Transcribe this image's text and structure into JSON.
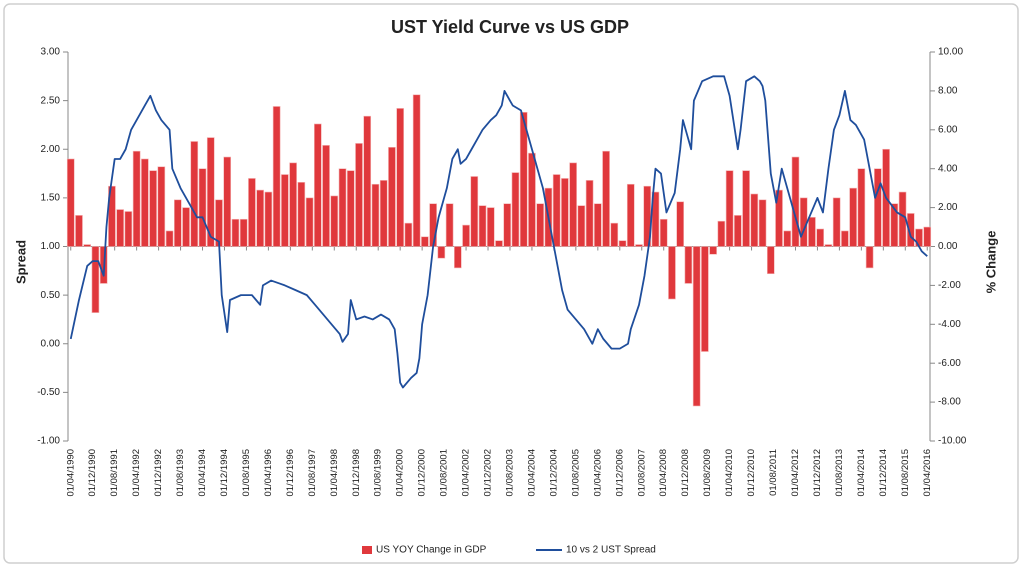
{
  "chart_data": {
    "type": "combo",
    "title": "UST Yield Curve vs US GDP",
    "y_label": "Spread",
    "y2_label": "% Change",
    "legend": "bottom",
    "xlim": [
      "01/03/1990",
      "01/05/2016"
    ],
    "xticks": [
      "01/04/1990",
      "01/12/1990",
      "01/08/1991",
      "01/04/1992",
      "01/12/1992",
      "01/08/1993",
      "01/04/1994",
      "01/12/1994",
      "01/08/1995",
      "01/04/1996",
      "01/12/1996",
      "01/08/1997",
      "01/04/1998",
      "01/12/1998",
      "01/08/1999",
      "01/04/2000",
      "01/12/2000",
      "01/08/2001",
      "01/04/2002",
      "01/12/2002",
      "01/08/2003",
      "01/04/2004",
      "01/12/2004",
      "01/08/2005",
      "01/04/2006",
      "01/12/2006",
      "01/08/2007",
      "01/04/2008",
      "01/12/2008",
      "01/08/2009",
      "01/04/2010",
      "01/12/2010",
      "01/08/2011",
      "01/04/2012",
      "01/12/2012",
      "01/08/2013",
      "01/04/2014",
      "01/12/2014",
      "01/08/2015",
      "01/04/2016"
    ],
    "ylim": [
      -1,
      3
    ],
    "yticks": [
      {
        "value": 3,
        "label": "3.00"
      },
      {
        "value": 2.5,
        "label": "2.50"
      },
      {
        "value": 2,
        "label": "2.00"
      },
      {
        "value": 1.5,
        "label": "1.50"
      },
      {
        "value": 1,
        "label": "1.00"
      },
      {
        "value": 0.5,
        "label": "0.50"
      },
      {
        "value": 0,
        "label": "0.00"
      },
      {
        "value": -0.5,
        "label": "-0.50"
      },
      {
        "value": -1,
        "label": "-1.00"
      }
    ],
    "y2lim": [
      -10,
      10
    ],
    "y2ticks": [
      {
        "value": 10,
        "label": "10.00"
      },
      {
        "value": 8,
        "label": "8.00"
      },
      {
        "value": 6,
        "label": "6.00"
      },
      {
        "value": 4,
        "label": "4.00"
      },
      {
        "value": 2,
        "label": "2.00"
      },
      {
        "value": 0,
        "label": "0.00"
      },
      {
        "value": -2,
        "label": "-2.00"
      },
      {
        "value": -4,
        "label": "-4.00"
      },
      {
        "value": -6,
        "label": "-6.00"
      },
      {
        "value": -8,
        "label": "-8.00"
      },
      {
        "value": -10,
        "label": "-10.00"
      }
    ],
    "series": [
      {
        "name": "US YOY Change in GDP",
        "type": "bar",
        "axis": "y2",
        "color": "#e0383c",
        "x": [
          "01/04/1990",
          "01/07/1990",
          "01/10/1990",
          "01/01/1991",
          "01/04/1991",
          "01/07/1991",
          "01/10/1991",
          "01/01/1992",
          "01/04/1992",
          "01/07/1992",
          "01/10/1992",
          "01/01/1993",
          "01/04/1993",
          "01/07/1993",
          "01/10/1993",
          "01/01/1994",
          "01/04/1994",
          "01/07/1994",
          "01/10/1994",
          "01/01/1995",
          "01/04/1995",
          "01/07/1995",
          "01/10/1995",
          "01/01/1996",
          "01/04/1996",
          "01/07/1996",
          "01/10/1996",
          "01/01/1997",
          "01/04/1997",
          "01/07/1997",
          "01/10/1997",
          "01/01/1998",
          "01/04/1998",
          "01/07/1998",
          "01/10/1998",
          "01/01/1999",
          "01/04/1999",
          "01/07/1999",
          "01/10/1999",
          "01/01/2000",
          "01/04/2000",
          "01/07/2000",
          "01/10/2000",
          "01/01/2001",
          "01/04/2001",
          "01/07/2001",
          "01/10/2001",
          "01/01/2002",
          "01/04/2002",
          "01/07/2002",
          "01/10/2002",
          "01/01/2003",
          "01/04/2003",
          "01/07/2003",
          "01/10/2003",
          "01/01/2004",
          "01/04/2004",
          "01/07/2004",
          "01/10/2004",
          "01/01/2005",
          "01/04/2005",
          "01/07/2005",
          "01/10/2005",
          "01/01/2006",
          "01/04/2006",
          "01/07/2006",
          "01/10/2006",
          "01/01/2007",
          "01/04/2007",
          "01/07/2007",
          "01/10/2007",
          "01/01/2008",
          "01/04/2008",
          "01/07/2008",
          "01/10/2008",
          "01/01/2009",
          "01/04/2009",
          "01/07/2009",
          "01/10/2009",
          "01/01/2010",
          "01/04/2010",
          "01/07/2010",
          "01/10/2010",
          "01/01/2011",
          "01/04/2011",
          "01/07/2011",
          "01/10/2011",
          "01/01/2012",
          "01/04/2012",
          "01/07/2012",
          "01/10/2012",
          "01/01/2013",
          "01/04/2013",
          "01/07/2013",
          "01/10/2013",
          "01/01/2014",
          "01/04/2014",
          "01/07/2014",
          "01/10/2014",
          "01/01/2015",
          "01/04/2015",
          "01/07/2015",
          "01/10/2015",
          "01/01/2016",
          "01/04/2016"
        ],
        "values": [
          4.5,
          1.6,
          0.1,
          -3.4,
          -1.9,
          3.1,
          1.9,
          1.8,
          4.9,
          4.5,
          3.9,
          4.1,
          0.8,
          2.4,
          2.0,
          5.4,
          4.0,
          5.6,
          2.4,
          4.6,
          1.4,
          1.4,
          3.5,
          2.9,
          2.8,
          7.2,
          3.7,
          4.3,
          3.3,
          2.5,
          6.3,
          5.2,
          2.6,
          4.0,
          3.9,
          5.3,
          6.7,
          3.2,
          3.4,
          5.1,
          7.1,
          1.2,
          7.8,
          0.5,
          2.2,
          -0.6,
          2.2,
          -1.1,
          1.1,
          3.6,
          2.1,
          2.0,
          0.3,
          2.2,
          3.8,
          6.9,
          4.8,
          2.2,
          3.0,
          3.7,
          3.5,
          4.3,
          2.1,
          3.4,
          2.2,
          4.9,
          1.2,
          0.3,
          3.2,
          0.1,
          3.1,
          2.8,
          1.4,
          -2.7,
          2.3,
          -1.9,
          -8.2,
          -5.4,
          -0.4,
          1.3,
          3.9,
          1.6,
          3.9,
          2.7,
          2.4,
          -1.4,
          2.9,
          0.8,
          4.6,
          2.5,
          1.5,
          0.9,
          0.1,
          2.5,
          0.8,
          3.0,
          4.0,
          -1.1,
          4.0,
          5.0,
          2.2,
          2.8,
          1.7,
          0.9,
          1.0
        ]
      },
      {
        "name": "10 vs 2 UST Spread",
        "type": "line",
        "color": "#1f4e9c",
        "x": [
          "01/04/1990",
          "01/07/1990",
          "01/10/1990",
          "01/12/1990",
          "01/02/1991",
          "01/04/1991",
          "01/05/1991",
          "01/06/1991",
          "01/08/1991",
          "01/10/1991",
          "01/12/1991",
          "01/02/1992",
          "01/05/1992",
          "01/07/1992",
          "01/09/1992",
          "01/11/1992",
          "01/01/1993",
          "01/04/1993",
          "01/05/1993",
          "01/08/1993",
          "01/11/1993",
          "01/02/1994",
          "01/04/1994",
          "01/07/1994",
          "01/10/1994",
          "01/11/1994",
          "01/01/1995",
          "01/02/1995",
          "01/06/1995",
          "01/10/1995",
          "01/01/1996",
          "01/02/1996",
          "01/05/1996",
          "01/08/1996",
          "01/10/1996",
          "01/02/1997",
          "01/06/1997",
          "01/09/1997",
          "01/12/1997",
          "01/03/1998",
          "01/06/1998",
          "01/07/1998",
          "01/09/1998",
          "01/10/1998",
          "01/12/1998",
          "01/03/1999",
          "01/06/1999",
          "01/09/1999",
          "01/12/1999",
          "01/02/2000",
          "01/03/2000",
          "01/04/2000",
          "01/05/2000",
          "01/08/2000",
          "01/10/2000",
          "01/11/2000",
          "01/12/2000",
          "01/02/2001",
          "01/04/2001",
          "01/06/2001",
          "01/09/2001",
          "01/11/2001",
          "01/01/2002",
          "01/02/2002",
          "01/04/2002",
          "01/06/2002",
          "01/08/2002",
          "01/10/2002",
          "01/01/2003",
          "01/03/2003",
          "01/05/2003",
          "01/06/2003",
          "01/08/2003",
          "01/09/2003",
          "01/12/2003",
          "01/02/2004",
          "01/05/2004",
          "01/08/2004",
          "01/10/2004",
          "01/12/2004",
          "01/03/2005",
          "01/05/2005",
          "01/08/2005",
          "01/11/2005",
          "01/01/2006",
          "01/02/2006",
          "01/04/2006",
          "01/06/2006",
          "01/09/2006",
          "01/12/2006",
          "01/03/2007",
          "01/04/2007",
          "01/07/2007",
          "01/09/2007",
          "01/11/2007",
          "01/12/2007",
          "01/01/2008",
          "01/03/2008",
          "01/05/2008",
          "01/08/2008",
          "01/10/2008",
          "01/11/2008",
          "01/01/2009",
          "01/02/2009",
          "01/03/2009",
          "01/06/2009",
          "01/10/2009",
          "01/02/2010",
          "01/04/2010",
          "01/07/2010",
          "01/08/2010",
          "01/10/2010",
          "01/01/2011",
          "01/03/2011",
          "01/04/2011",
          "01/05/2011",
          "01/07/2011",
          "01/09/2011",
          "01/11/2011",
          "01/02/2012",
          "01/05/2012",
          "01/06/2012",
          "01/09/2012",
          "01/12/2012",
          "01/02/2013",
          "01/04/2013",
          "01/06/2013",
          "01/08/2013",
          "01/10/2013",
          "01/12/2013",
          "01/02/2014",
          "01/05/2014",
          "01/07/2014",
          "01/09/2014",
          "01/11/2014",
          "01/01/2015",
          "01/05/2015",
          "01/08/2015",
          "01/10/2015",
          "01/12/2015",
          "01/02/2016",
          "01/04/2016"
        ],
        "values": [
          0.05,
          0.45,
          0.8,
          0.85,
          0.85,
          0.7,
          1.2,
          1.5,
          1.9,
          1.9,
          2.0,
          2.2,
          2.35,
          2.45,
          2.55,
          2.4,
          2.3,
          2.2,
          1.8,
          1.6,
          1.45,
          1.3,
          1.3,
          1.1,
          1.05,
          0.5,
          0.12,
          0.45,
          0.5,
          0.5,
          0.4,
          0.6,
          0.65,
          0.62,
          0.6,
          0.55,
          0.5,
          0.4,
          0.3,
          0.2,
          0.1,
          0.02,
          0.1,
          0.45,
          0.25,
          0.28,
          0.25,
          0.3,
          0.25,
          0.15,
          -0.1,
          -0.4,
          -0.45,
          -0.35,
          -0.3,
          -0.15,
          0.2,
          0.5,
          1.0,
          1.3,
          1.6,
          1.9,
          2.0,
          1.85,
          1.9,
          2.0,
          2.1,
          2.2,
          2.3,
          2.35,
          2.45,
          2.6,
          2.5,
          2.45,
          2.4,
          2.2,
          1.9,
          1.6,
          1.3,
          1.0,
          0.55,
          0.35,
          0.25,
          0.15,
          0.05,
          0.0,
          0.15,
          0.05,
          -0.05,
          -0.05,
          0.0,
          0.15,
          0.4,
          0.7,
          1.1,
          1.5,
          1.8,
          1.75,
          1.35,
          1.55,
          2.0,
          2.3,
          2.1,
          2.0,
          2.5,
          2.7,
          2.75,
          2.75,
          2.55,
          2.0,
          2.2,
          2.7,
          2.75,
          2.7,
          2.65,
          2.5,
          1.75,
          1.45,
          1.8,
          1.5,
          1.2,
          1.1,
          1.3,
          1.5,
          1.35,
          1.8,
          2.2,
          2.35,
          2.6,
          2.3,
          2.25,
          2.1,
          1.8,
          1.5,
          1.65,
          1.5,
          1.35,
          1.3,
          1.1,
          1.05,
          0.95,
          0.9
        ]
      }
    ]
  }
}
